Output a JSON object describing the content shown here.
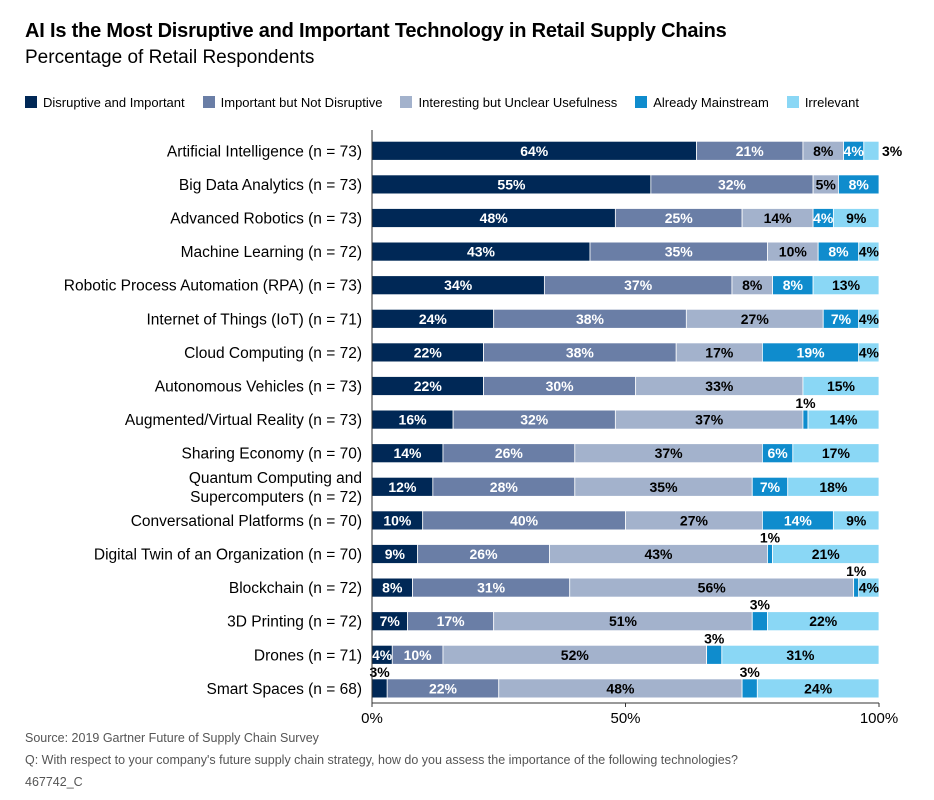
{
  "chart_data": {
    "type": "bar",
    "orientation": "horizontal",
    "stacked": true,
    "title": "AI Is the Most Disruptive and Important Technology in Retail Supply Chains",
    "subtitle": "Percentage of Retail Respondents",
    "xlim": [
      0,
      100
    ],
    "xticks": [
      "0%",
      "50%",
      "100%"
    ],
    "grid": false,
    "legend_position": "top",
    "categories": [
      "Artificial Intelligence (n = 73)",
      "Big Data Analytics (n = 73)",
      "Advanced Robotics (n = 73)",
      "Machine Learning (n = 72)",
      "Robotic Process Automation (RPA) (n = 73)",
      "Internet of Things (IoT) (n = 71)",
      "Cloud Computing (n = 72)",
      "Autonomous Vehicles (n = 73)",
      "Augmented/Virtual Reality (n = 73)",
      "Sharing Economy (n = 70)",
      "Quantum Computing and\nSupercomputers (n = 72)",
      "Conversational Platforms (n = 70)",
      "Digital Twin of an Organization (n = 70)",
      "Blockchain (n = 72)",
      "3D Printing (n = 72)",
      "Drones (n = 71)",
      "Smart Spaces (n = 68)"
    ],
    "series": [
      {
        "name": "Disruptive and Important",
        "color": "#002856",
        "values": [
          64,
          55,
          48,
          43,
          34,
          24,
          22,
          22,
          16,
          14,
          12,
          10,
          9,
          8,
          7,
          4,
          3
        ]
      },
      {
        "name": "Important but Not Disruptive",
        "color": "#6a7ea6",
        "values": [
          21,
          32,
          25,
          35,
          37,
          38,
          38,
          30,
          32,
          26,
          28,
          40,
          26,
          31,
          17,
          10,
          22
        ]
      },
      {
        "name": "Interesting but Unclear Usefulness",
        "color": "#a3b2cc",
        "values": [
          8,
          5,
          14,
          10,
          8,
          27,
          17,
          33,
          37,
          37,
          35,
          27,
          43,
          56,
          51,
          52,
          48
        ]
      },
      {
        "name": "Already Mainstream",
        "color": "#0f8ccd",
        "values": [
          4,
          8,
          4,
          8,
          8,
          7,
          19,
          0,
          1,
          6,
          7,
          14,
          1,
          1,
          3,
          3,
          3
        ]
      },
      {
        "name": "Irrelevant",
        "color": "#8ad7f5",
        "values": [
          3,
          0,
          9,
          4,
          13,
          4,
          4,
          15,
          14,
          17,
          18,
          9,
          21,
          4,
          22,
          31,
          24
        ]
      }
    ]
  },
  "footer": {
    "source": "Source: 2019 Gartner Future of Supply Chain Survey",
    "question": "Q: With respect to your company's future supply chain strategy, how do you assess the importance of the following technologies?",
    "code": "467742_C"
  }
}
